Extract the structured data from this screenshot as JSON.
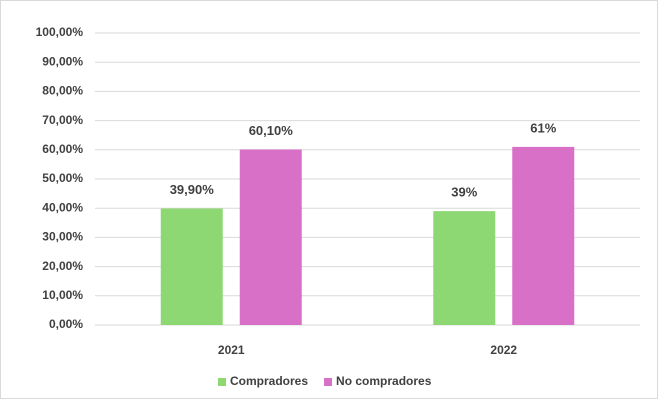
{
  "chart_data": {
    "type": "bar",
    "categories": [
      "2021",
      "2022"
    ],
    "series": [
      {
        "name": "Compradores",
        "color": "#8ed873",
        "values": [
          39.9,
          39
        ],
        "value_labels": [
          "39,90%",
          "39%"
        ]
      },
      {
        "name": "No compradores",
        "color": "#d870c8",
        "values": [
          60.1,
          61
        ],
        "value_labels": [
          "60,10%",
          "61%"
        ]
      }
    ],
    "ylim": [
      0,
      100
    ],
    "yticks": [
      {
        "value": 0,
        "label": "0,00%"
      },
      {
        "value": 10,
        "label": "10,00%"
      },
      {
        "value": 20,
        "label": "20,00%"
      },
      {
        "value": 30,
        "label": "30,00%"
      },
      {
        "value": 40,
        "label": "40,00%"
      },
      {
        "value": 50,
        "label": "50,00%"
      },
      {
        "value": 60,
        "label": "60,00%"
      },
      {
        "value": 70,
        "label": "70,00%"
      },
      {
        "value": 80,
        "label": "80,00%"
      },
      {
        "value": 90,
        "label": "90,00%"
      },
      {
        "value": 100,
        "label": "100,00%"
      }
    ],
    "grid": true,
    "legend": "bottom"
  }
}
